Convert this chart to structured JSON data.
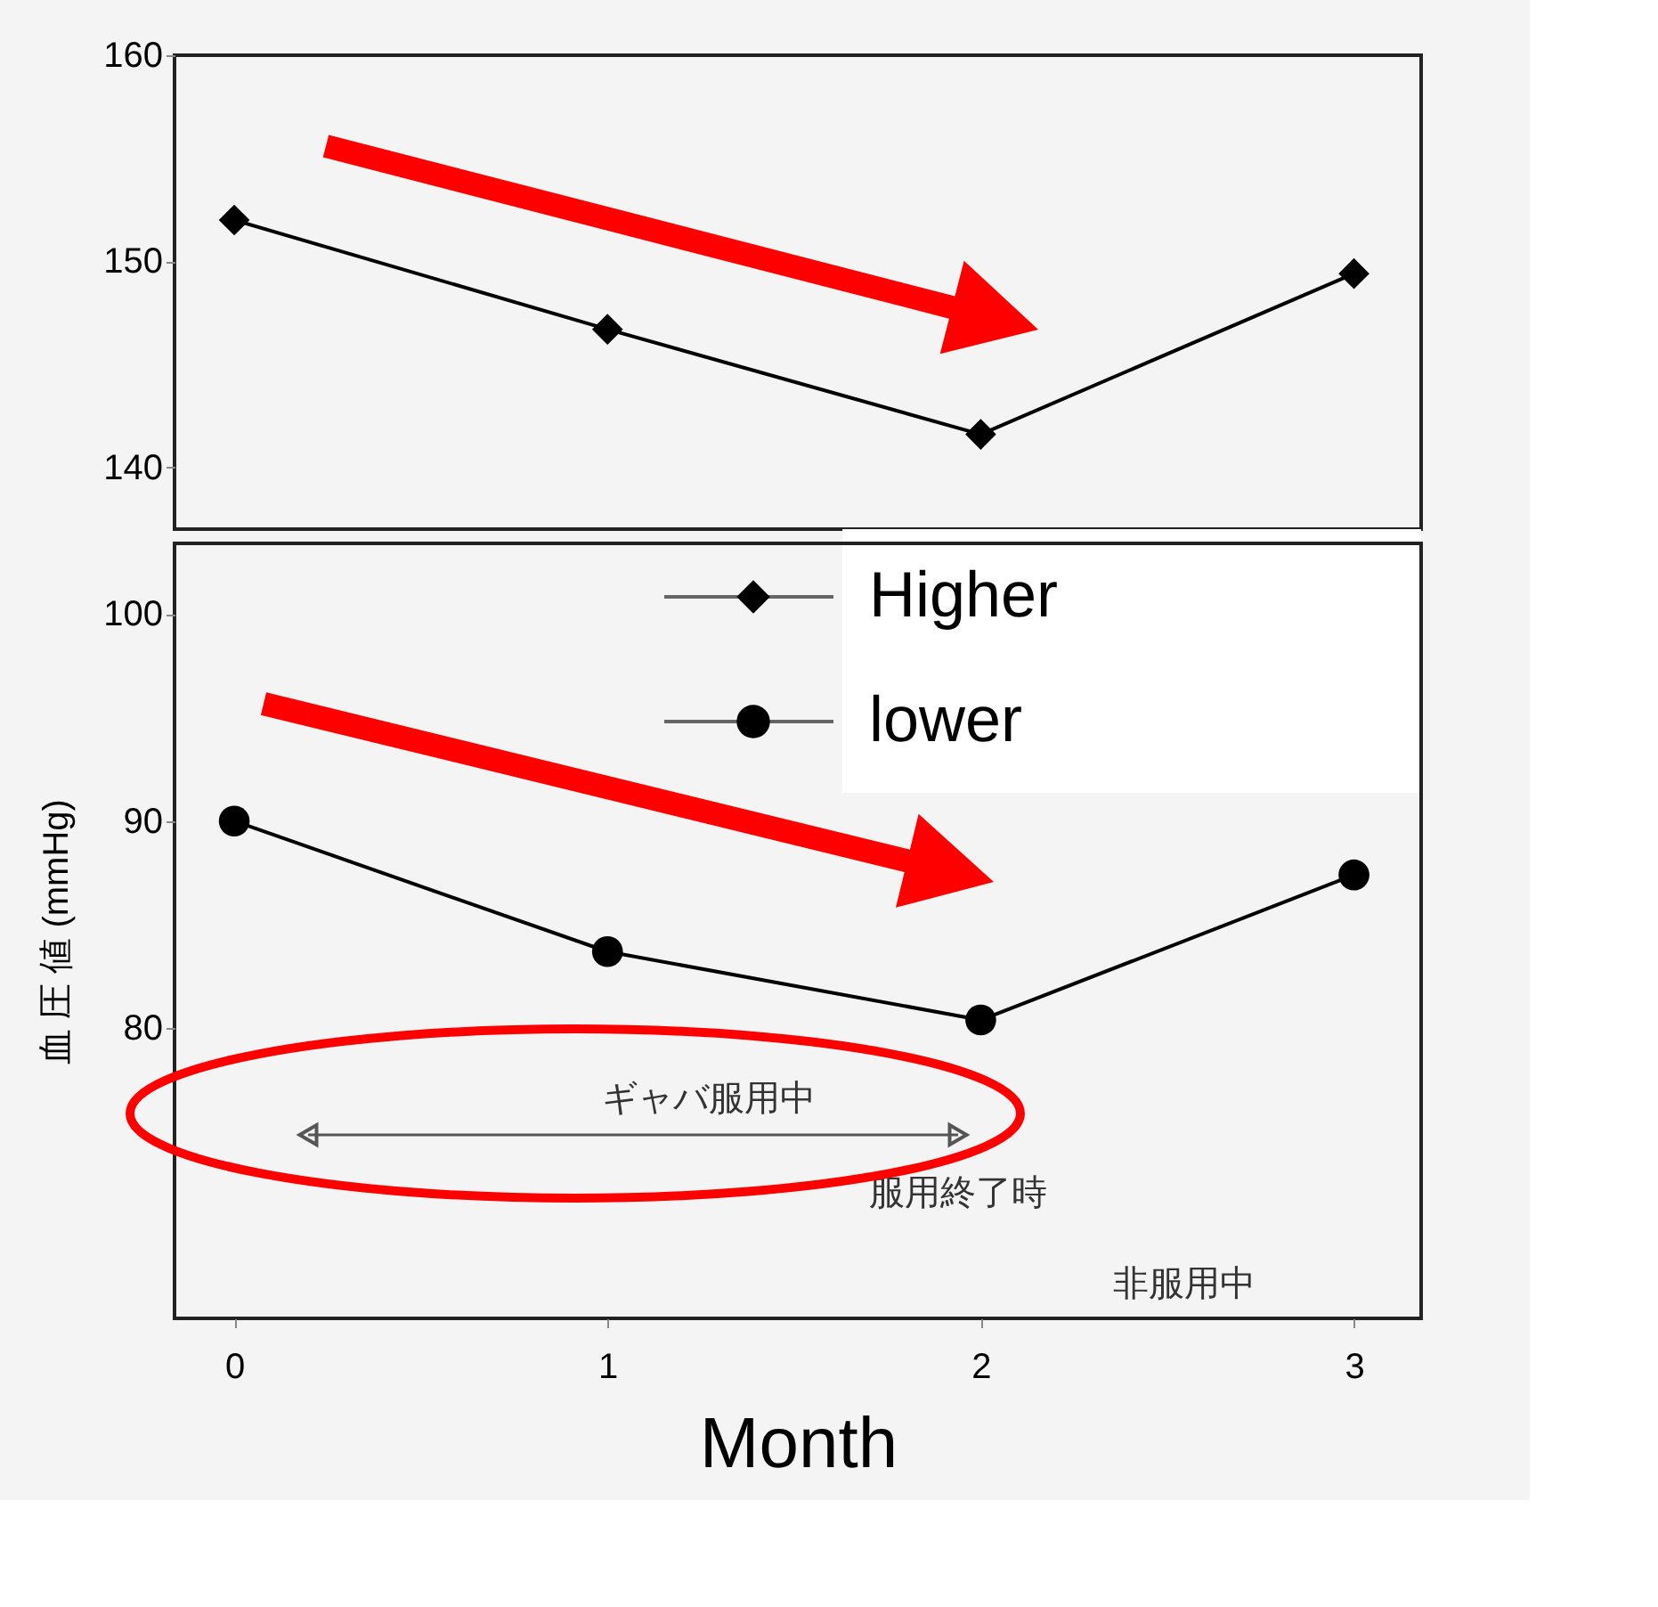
{
  "chart_data": [
    {
      "type": "line",
      "xlim": [
        -0.16,
        3.18
      ],
      "xticks": [
        0,
        1,
        2,
        3
      ],
      "ylim": [
        137,
        160
      ],
      "yticks": [
        140,
        150,
        160
      ],
      "tick_labels": "y",
      "grid": false,
      "legend": "bottom right",
      "line_style": "solid",
      "x": [
        0,
        1,
        2,
        3
      ],
      "series": [
        {
          "name": "Higher",
          "color": "#000000",
          "marker": "diamond",
          "values": [
            152.0,
            146.7,
            141.6,
            149.4
          ]
        }
      ]
    },
    {
      "type": "line",
      "xlim": [
        -0.16,
        3.18
      ],
      "xticks": [
        0,
        1,
        2,
        3
      ],
      "ylim": [
        66,
        103.4
      ],
      "yticks": [
        80,
        90,
        100
      ],
      "grid": false,
      "legend": "top right",
      "line_style": "solid",
      "xlabel": "Month",
      "ylabel": "血 圧 値 (mmHg)",
      "x": [
        0,
        1,
        2,
        3
      ],
      "series": [
        {
          "name": "lower",
          "color": "#000000",
          "marker": "circle",
          "values": [
            90.0,
            83.7,
            80.4,
            87.4
          ]
        }
      ],
      "annotations": [
        "ギャバ服用中",
        "服用終了時",
        "非服用中"
      ]
    }
  ]
}
